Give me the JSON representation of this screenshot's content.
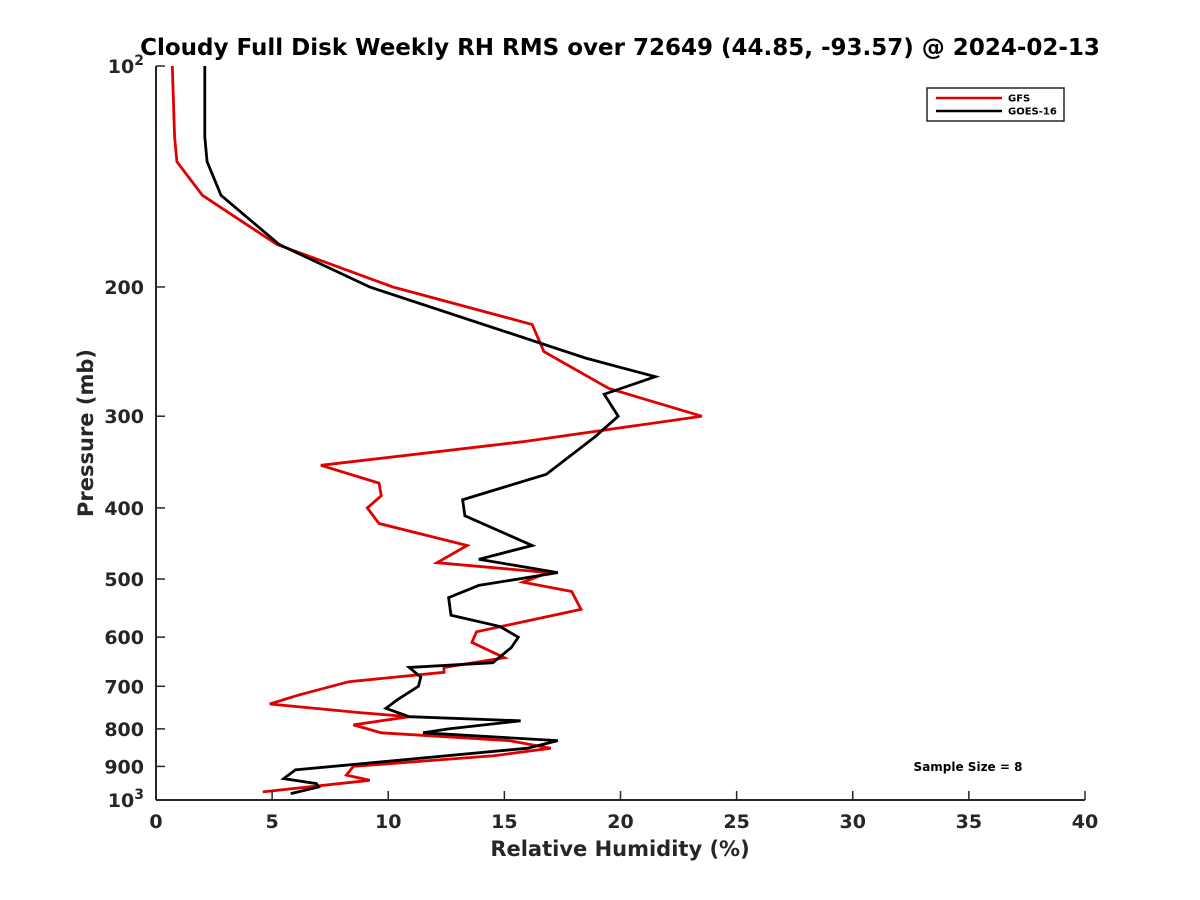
{
  "chart_data": {
    "type": "line",
    "title": "Cloudy Full Disk Weekly RH RMS over 72649 (44.85, -93.57) @ 2024-02-13",
    "xlabel": "Relative Humidity (%)",
    "ylabel": "Pressure (mb)",
    "xlim": [
      0,
      40
    ],
    "ylim": [
      100,
      1000
    ],
    "yscale": "log",
    "y_reversed": true,
    "grid": false,
    "legend_position": "top-right",
    "x_ticks": [
      "0",
      "5",
      "10",
      "15",
      "20",
      "25",
      "30",
      "35",
      "40"
    ],
    "y_ticks": [
      {
        "value": 100,
        "base": "10",
        "exp": "2"
      },
      {
        "value": 200,
        "label": "200"
      },
      {
        "value": 300,
        "label": "300"
      },
      {
        "value": 400,
        "label": "400"
      },
      {
        "value": 500,
        "label": "500"
      },
      {
        "value": 600,
        "label": "600"
      },
      {
        "value": 700,
        "label": "700"
      },
      {
        "value": 800,
        "label": "800"
      },
      {
        "value": 900,
        "label": "900"
      },
      {
        "value": 1000,
        "base": "10",
        "exp": "3"
      }
    ],
    "annotation": "Sample Size = 8",
    "series": [
      {
        "name": "GFS",
        "color": "#e00000",
        "points": [
          [
            0.7,
            100
          ],
          [
            0.8,
            125
          ],
          [
            0.9,
            135
          ],
          [
            2.0,
            150
          ],
          [
            5.2,
            175
          ],
          [
            10.2,
            200
          ],
          [
            16.2,
            225
          ],
          [
            16.7,
            245
          ],
          [
            19.5,
            275
          ],
          [
            23.5,
            300
          ],
          [
            15.8,
            325
          ],
          [
            7.1,
            350
          ],
          [
            9.6,
            370
          ],
          [
            9.7,
            385
          ],
          [
            9.1,
            400
          ],
          [
            9.6,
            420
          ],
          [
            13.4,
            450
          ],
          [
            12.1,
            475
          ],
          [
            16.9,
            490
          ],
          [
            15.8,
            505
          ],
          [
            17.9,
            520
          ],
          [
            18.3,
            550
          ],
          [
            13.8,
            590
          ],
          [
            13.6,
            610
          ],
          [
            15.0,
            640
          ],
          [
            12.4,
            660
          ],
          [
            12.4,
            670
          ],
          [
            8.3,
            690
          ],
          [
            6.1,
            720
          ],
          [
            4.9,
            740
          ],
          [
            8.7,
            760
          ],
          [
            10.9,
            770
          ],
          [
            8.5,
            790
          ],
          [
            9.7,
            810
          ],
          [
            15.2,
            830
          ],
          [
            17.0,
            850
          ],
          [
            14.6,
            870
          ],
          [
            8.5,
            900
          ],
          [
            8.2,
            925
          ],
          [
            9.2,
            940
          ],
          [
            4.6,
            975
          ]
        ]
      },
      {
        "name": "GOES-16",
        "color": "#000000",
        "points": [
          [
            2.1,
            100
          ],
          [
            2.1,
            125
          ],
          [
            2.2,
            135
          ],
          [
            2.8,
            150
          ],
          [
            5.3,
            175
          ],
          [
            9.2,
            200
          ],
          [
            18.5,
            250
          ],
          [
            21.5,
            265
          ],
          [
            19.3,
            280
          ],
          [
            19.9,
            300
          ],
          [
            18.9,
            320
          ],
          [
            16.8,
            360
          ],
          [
            13.2,
            390
          ],
          [
            13.3,
            410
          ],
          [
            16.2,
            450
          ],
          [
            13.9,
            470
          ],
          [
            17.3,
            490
          ],
          [
            13.9,
            510
          ],
          [
            12.6,
            530
          ],
          [
            12.7,
            560
          ],
          [
            14.8,
            580
          ],
          [
            15.6,
            600
          ],
          [
            15.3,
            620
          ],
          [
            14.5,
            650
          ],
          [
            10.9,
            660
          ],
          [
            11.4,
            680
          ],
          [
            11.3,
            700
          ],
          [
            10.4,
            730
          ],
          [
            9.9,
            750
          ],
          [
            10.9,
            770
          ],
          [
            15.7,
            780
          ],
          [
            12.6,
            800
          ],
          [
            11.5,
            810
          ],
          [
            17.3,
            830
          ],
          [
            16.0,
            850
          ],
          [
            6.0,
            910
          ],
          [
            5.5,
            935
          ],
          [
            6.9,
            950
          ],
          [
            7.0,
            960
          ],
          [
            5.8,
            980
          ]
        ]
      }
    ]
  }
}
